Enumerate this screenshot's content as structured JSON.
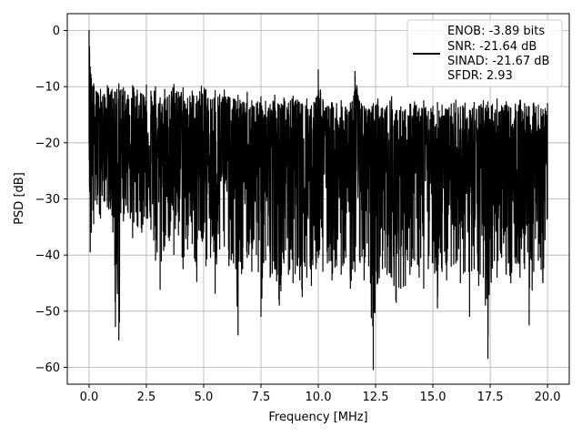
{
  "chart_data": {
    "type": "line",
    "title": "",
    "xlabel": "Frequency [MHz]",
    "ylabel": "PSD [dB]",
    "xlim": [
      -0.95,
      20.95
    ],
    "ylim": [
      -63.0,
      3.0
    ],
    "xticks": [
      0.0,
      2.5,
      5.0,
      7.5,
      10.0,
      12.5,
      15.0,
      17.5,
      20.0
    ],
    "xtick_labels": [
      "0.0",
      "2.5",
      "5.0",
      "7.5",
      "10.0",
      "12.5",
      "15.0",
      "17.5",
      "20.0"
    ],
    "yticks": [
      0,
      -10,
      -20,
      -30,
      -40,
      -50,
      -60
    ],
    "ytick_labels": [
      "0",
      "−10",
      "−20",
      "−30",
      "−40",
      "−50",
      "−60"
    ],
    "grid": true,
    "legend_location": "top-right",
    "legend_entries": [
      "ENOB: -3.89 bits",
      "SNR: -21.64 dB",
      "SINAD: -21.67 dB",
      "SFDR: 2.93"
    ],
    "series_color": "#000000",
    "grid_color": "#b0b0b0",
    "series": [
      {
        "x": [
          0.0,
          0.02,
          0.05,
          0.08,
          0.1,
          0.2,
          0.35,
          0.5,
          0.65,
          0.8,
          1.0,
          1.15,
          1.3,
          1.5,
          1.7,
          1.9,
          2.1,
          2.3,
          2.5,
          2.7,
          2.9,
          3.1,
          3.3,
          3.5,
          3.7,
          3.9,
          4.1,
          4.3,
          4.5,
          4.7,
          4.9,
          5.1,
          5.3,
          5.5,
          5.7,
          5.9,
          6.1,
          6.3,
          6.5,
          6.7,
          6.9,
          7.1,
          7.3,
          7.5,
          7.7,
          7.9,
          8.1,
          8.3,
          8.5,
          8.7,
          8.9,
          9.1,
          9.3,
          9.5,
          9.7,
          9.9,
          10.0,
          10.2,
          10.4,
          10.6,
          10.8,
          11.0,
          11.2,
          11.4,
          11.6,
          11.8,
          12.0,
          12.2,
          12.4,
          12.6,
          12.8,
          13.0,
          13.2,
          13.4,
          13.6,
          13.8,
          14.0,
          14.2,
          14.4,
          14.6,
          14.8,
          15.0,
          15.2,
          15.4,
          15.6,
          15.8,
          16.0,
          16.2,
          16.4,
          16.6,
          16.8,
          17.0,
          17.2,
          17.4,
          17.6,
          17.8,
          18.0,
          18.2,
          18.4,
          18.6,
          18.8,
          19.0,
          19.2,
          19.4,
          19.6,
          19.8,
          20.0
        ],
        "y_high": [
          0.0,
          -2.9,
          -6.5,
          -7.8,
          -8.5,
          -9.5,
          -11.0,
          -10.5,
          -11.5,
          -9.8,
          -10.5,
          -11.0,
          -9.5,
          -10.2,
          -11.5,
          -9.8,
          -10.6,
          -11.3,
          -9.7,
          -10.8,
          -10.0,
          -12.0,
          -10.5,
          -11.5,
          -9.6,
          -11.0,
          -10.2,
          -12.1,
          -10.8,
          -11.7,
          -9.9,
          -10.5,
          -12.3,
          -10.7,
          -11.4,
          -10.6,
          -11.9,
          -12.2,
          -11.5,
          -12.8,
          -11.0,
          -12.5,
          -13.0,
          -11.8,
          -12.6,
          -13.2,
          -11.5,
          -13.3,
          -12.0,
          -12.9,
          -11.7,
          -12.4,
          -13.1,
          -12.2,
          -13.4,
          -12.0,
          -7.0,
          -12.3,
          -13.5,
          -12.8,
          -13.0,
          -12.5,
          -13.7,
          -12.9,
          -7.3,
          -12.6,
          -13.5,
          -14.0,
          -13.0,
          -12.2,
          -13.8,
          -13.4,
          -11.8,
          -14.3,
          -13.6,
          -14.1,
          -13.1,
          -12.7,
          -13.9,
          -12.5,
          -14.4,
          -13.5,
          -12.8,
          -13.3,
          -14.0,
          -13.1,
          -12.4,
          -13.6,
          -12.9,
          -14.2,
          -12.8,
          -13.5,
          -12.5,
          -12.7,
          -13.2,
          -12.2,
          -13.4,
          -12.7,
          -13.8,
          -13.1,
          -12.4,
          -13.0,
          -13.6,
          -12.9,
          -13.3,
          -14.1,
          -13.0
        ],
        "y_low": [
          -20.0,
          -28.0,
          -39.5,
          -33.0,
          -36.0,
          -34.5,
          -31.0,
          -33.5,
          -30.5,
          -31.5,
          -33.0,
          -52.8,
          -55.2,
          -34.0,
          -32.5,
          -37.0,
          -34.8,
          -36.0,
          -33.5,
          -35.5,
          -41.0,
          -46.2,
          -38.5,
          -37.5,
          -40.0,
          -36.5,
          -42.5,
          -39.0,
          -38.0,
          -44.8,
          -37.0,
          -42.0,
          -40.5,
          -46.9,
          -39.0,
          -38.5,
          -42.0,
          -41.5,
          -54.3,
          -42.5,
          -40.5,
          -43.0,
          -40.0,
          -51.0,
          -41.0,
          -44.0,
          -42.5,
          -49.0,
          -41.5,
          -43.5,
          -45.0,
          -42.0,
          -47.5,
          -44.0,
          -45.5,
          -42.5,
          -40.5,
          -43.0,
          -41.5,
          -44.5,
          -42.0,
          -43.5,
          -40.5,
          -46.0,
          -43.0,
          -41.0,
          -44.5,
          -42.0,
          -60.5,
          -45.0,
          -42.5,
          -43.5,
          -44.0,
          -48.5,
          -46.0,
          -45.5,
          -43.5,
          -41.0,
          -44.0,
          -46.0,
          -42.5,
          -41.5,
          -49.5,
          -43.0,
          -44.5,
          -42.0,
          -41.5,
          -45.0,
          -43.0,
          -51.0,
          -42.5,
          -45.5,
          -44.0,
          -58.5,
          -42.0,
          -44.0,
          -40.5,
          -43.5,
          -45.0,
          -41.5,
          -44.0,
          -42.5,
          -52.5,
          -43.0,
          -41.0,
          -45.0,
          -33.5
        ],
        "y_mid": [
          -10.0,
          -15.0,
          -22.0,
          -20.0,
          -21.0,
          -20.5,
          -19.5,
          -21.0,
          -20.0,
          -20.5,
          -21.0,
          -22.0,
          -21.5,
          -20.5,
          -21.0,
          -22.0,
          -21.5,
          -21.0,
          -21.5,
          -22.0,
          -21.0,
          -22.5,
          -21.5,
          -22.0,
          -21.5,
          -22.0,
          -22.5,
          -22.0,
          -22.5,
          -22.0,
          -21.5,
          -22.0,
          -22.5,
          -22.0,
          -22.5,
          -22.0,
          -23.0,
          -22.5,
          -23.0,
          -22.5,
          -23.0,
          -23.5,
          -23.0,
          -23.5,
          -23.0,
          -23.5,
          -23.0,
          -24.0,
          -23.5,
          -23.0,
          -23.5,
          -24.0,
          -23.5,
          -24.0,
          -23.5,
          -24.0,
          -23.0,
          -24.0,
          -23.5,
          -24.0,
          -24.5,
          -24.0,
          -23.5,
          -24.0,
          -22.0,
          -24.0,
          -24.5,
          -24.0,
          -24.5,
          -24.0,
          -24.5,
          -24.0,
          -23.5,
          -24.5,
          -24.0,
          -24.5,
          -24.0,
          -23.5,
          -24.0,
          -24.5,
          -24.0,
          -24.5,
          -24.0,
          -24.5,
          -24.0,
          -23.5,
          -24.0,
          -24.5,
          -24.0,
          -24.5,
          -24.0,
          -24.5,
          -24.0,
          -24.5,
          -24.0,
          -23.5,
          -24.0,
          -24.5,
          -24.0,
          -24.5,
          -24.0,
          -23.5,
          -24.0,
          -24.5,
          -24.0,
          -24.5,
          -23.0
        ]
      }
    ]
  }
}
